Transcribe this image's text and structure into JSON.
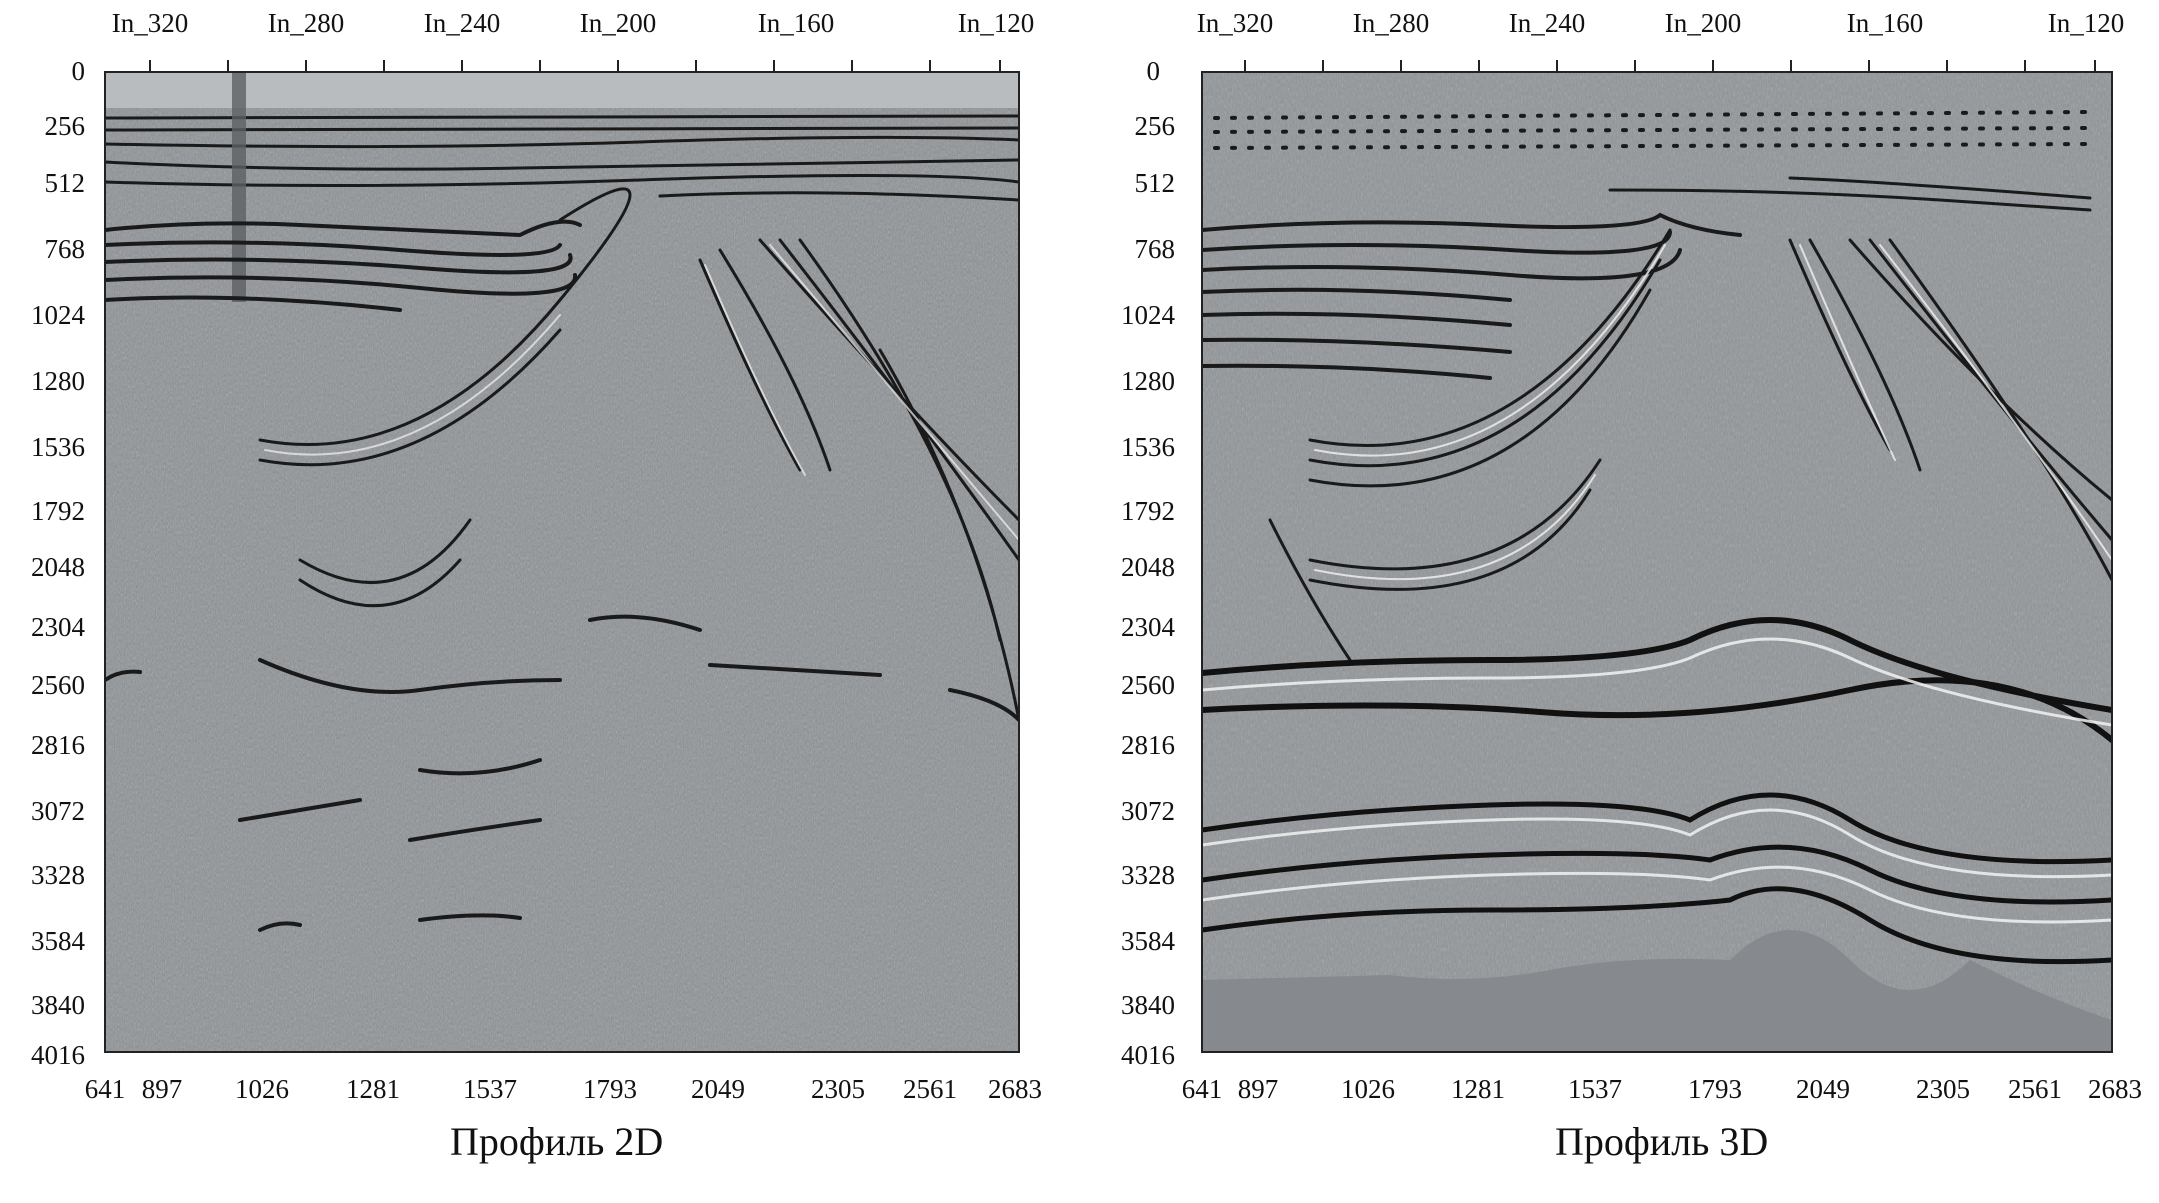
{
  "panels": [
    {
      "id": "2d",
      "caption": "Профиль 2D",
      "top_labels": [
        "In_320",
        "In_280",
        "In_240",
        "In_200",
        "In_160",
        "In_120"
      ],
      "y_labels": [
        "0",
        "256",
        "512",
        "768",
        "1024",
        "1280",
        "1536",
        "1792",
        "2048",
        "2304",
        "2560",
        "2816",
        "3072",
        "3328",
        "3584",
        "3840",
        "4016"
      ],
      "x_labels": [
        "641",
        "897",
        "1026",
        "1281",
        "1537",
        "1793",
        "2049",
        "2305",
        "2561",
        "2683"
      ],
      "section_fill": "#8c9094"
    },
    {
      "id": "3d",
      "caption": "Профиль 3D",
      "top_labels": [
        "In_320",
        "In_280",
        "In_240",
        "In_200",
        "In_160",
        "In_120"
      ],
      "y_labels": [
        "0",
        "256",
        "512",
        "768",
        "1024",
        "1280",
        "1536",
        "1792",
        "2048",
        "2304",
        "2560",
        "2816",
        "3072",
        "3328",
        "3584",
        "3840",
        "4016"
      ],
      "x_labels": [
        "641",
        "897",
        "1026",
        "1281",
        "1537",
        "1793",
        "2049",
        "2305",
        "2561",
        "2683"
      ],
      "section_fill": "#8f9397"
    }
  ],
  "colors": {
    "reflector_dark": "#1a1a1a",
    "reflector_light": "#f2f2f2",
    "frame": "#222222"
  }
}
